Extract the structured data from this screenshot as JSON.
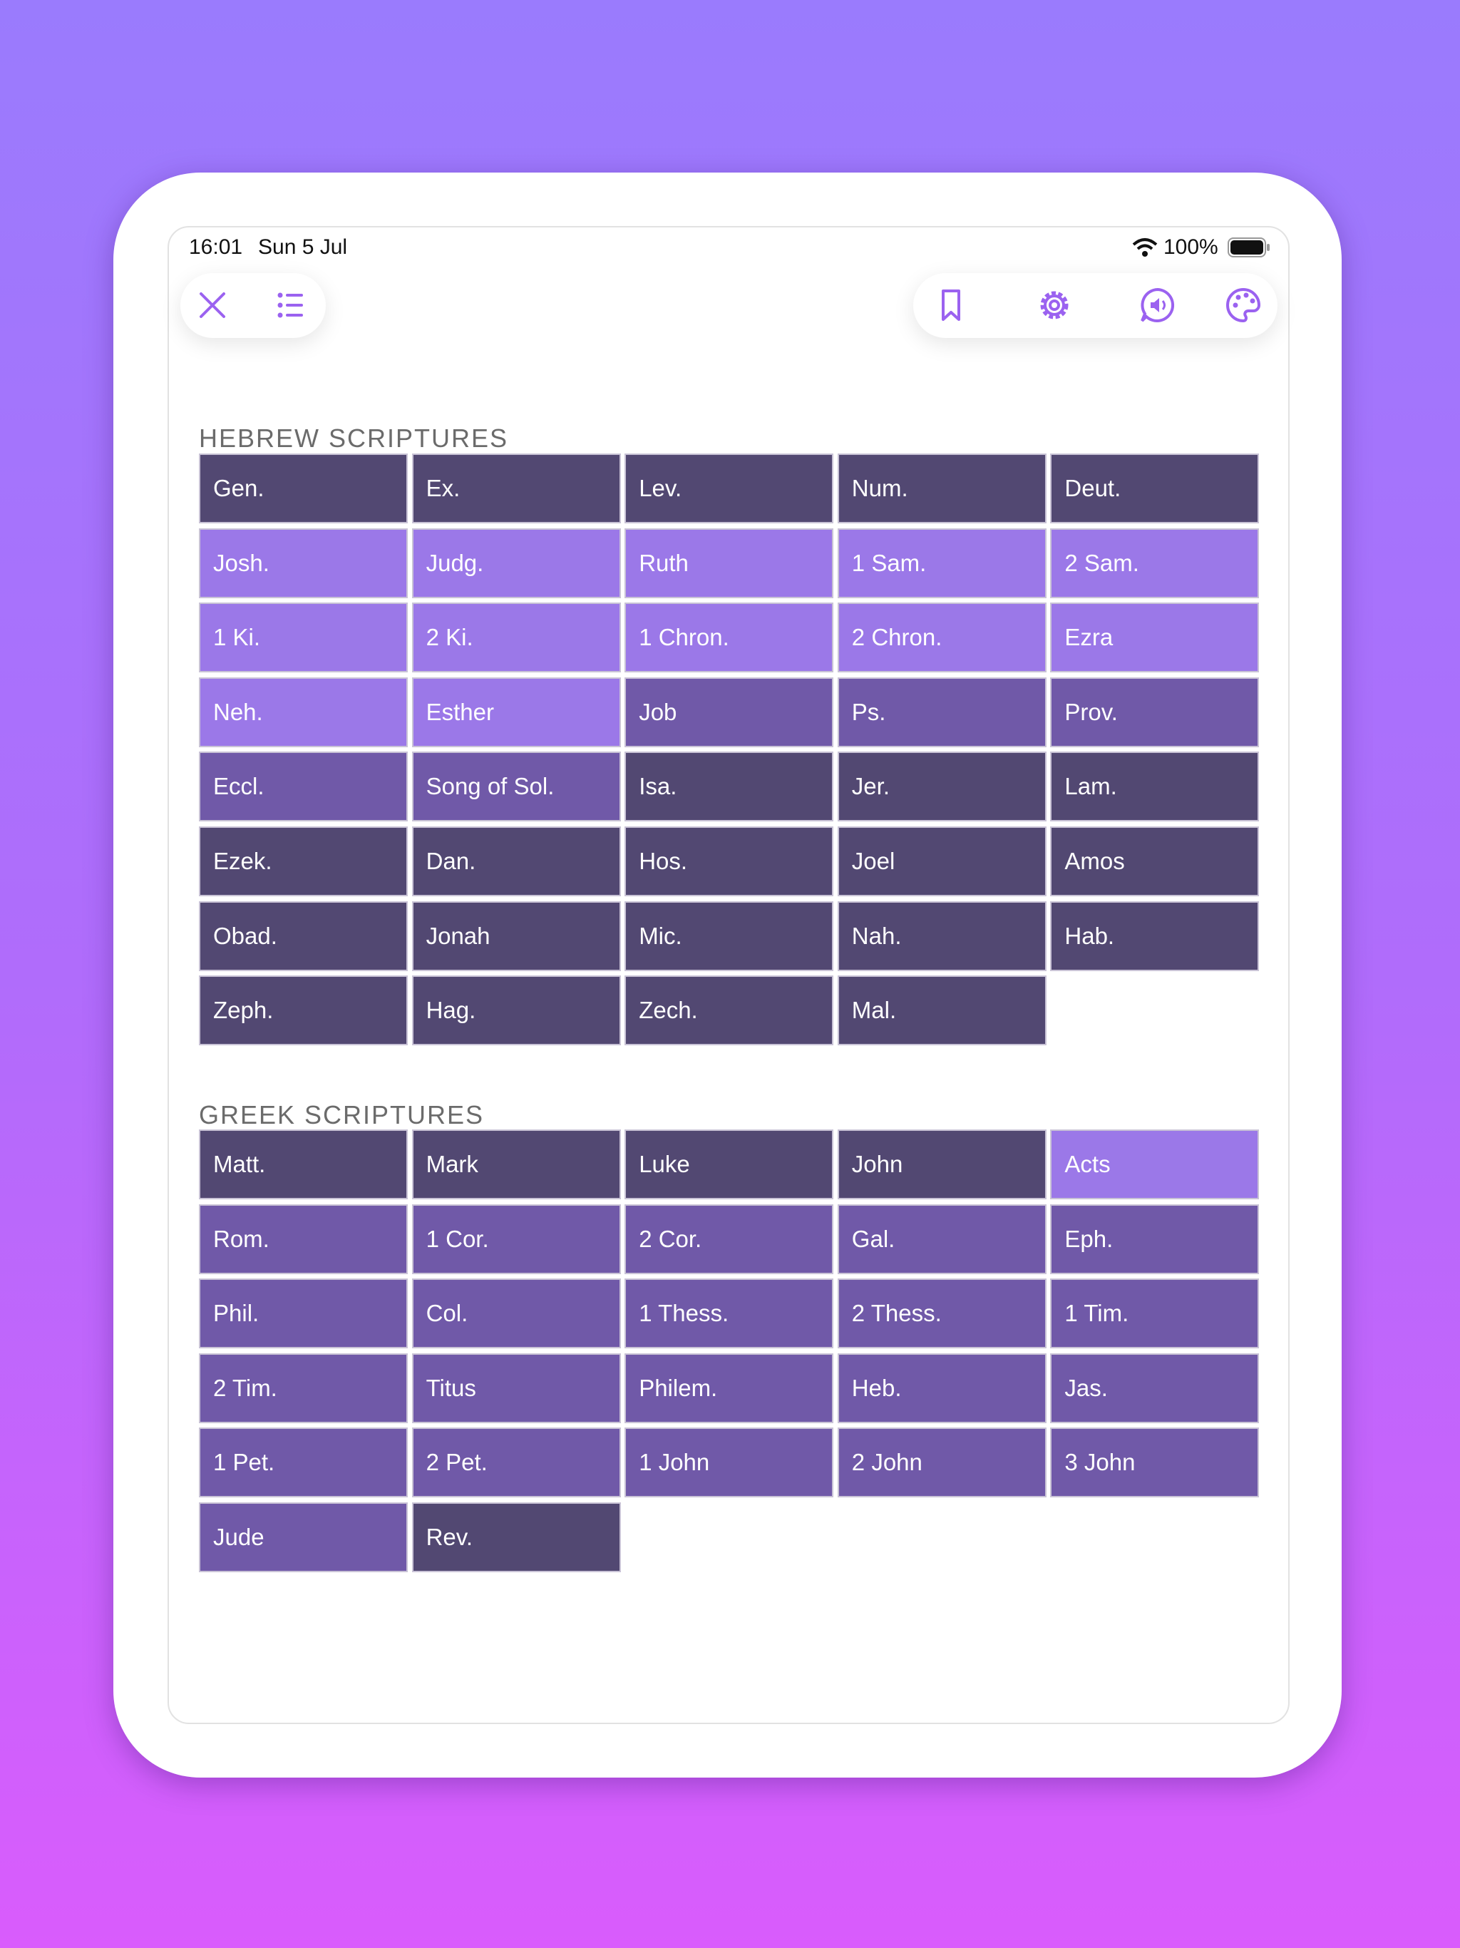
{
  "status_bar": {
    "time": "16:01",
    "date": "Sun 5 Jul",
    "battery": "100%"
  },
  "sections": [
    {
      "title": "HEBREW SCRIPTURES",
      "books": [
        {
          "label": "Gen.",
          "color": "#524872"
        },
        {
          "label": "Ex.",
          "color": "#524872"
        },
        {
          "label": "Lev.",
          "color": "#524872"
        },
        {
          "label": "Num.",
          "color": "#524872"
        },
        {
          "label": "Deut.",
          "color": "#524872"
        },
        {
          "label": "Josh.",
          "color": "#9b78e8"
        },
        {
          "label": "Judg.",
          "color": "#9b78e8"
        },
        {
          "label": "Ruth",
          "color": "#9b78e8"
        },
        {
          "label": "1 Sam.",
          "color": "#9b78e8"
        },
        {
          "label": "2 Sam.",
          "color": "#9b78e8"
        },
        {
          "label": "1 Ki.",
          "color": "#9b78e8"
        },
        {
          "label": "2 Ki.",
          "color": "#9b78e8"
        },
        {
          "label": "1 Chron.",
          "color": "#9b78e8"
        },
        {
          "label": "2 Chron.",
          "color": "#9b78e8"
        },
        {
          "label": "Ezra",
          "color": "#9b78e8"
        },
        {
          "label": "Neh.",
          "color": "#9b78e8"
        },
        {
          "label": "Esther",
          "color": "#9b78e8"
        },
        {
          "label": "Job",
          "color": "#7059a8"
        },
        {
          "label": "Ps.",
          "color": "#7059a8"
        },
        {
          "label": "Prov.",
          "color": "#7059a8"
        },
        {
          "label": "Eccl.",
          "color": "#7059a8"
        },
        {
          "label": "Song of Sol.",
          "color": "#7059a8"
        },
        {
          "label": "Isa.",
          "color": "#524872"
        },
        {
          "label": "Jer.",
          "color": "#524872"
        },
        {
          "label": "Lam.",
          "color": "#524872"
        },
        {
          "label": "Ezek.",
          "color": "#524872"
        },
        {
          "label": "Dan.",
          "color": "#524872"
        },
        {
          "label": "Hos.",
          "color": "#524872"
        },
        {
          "label": "Joel",
          "color": "#524872"
        },
        {
          "label": "Amos",
          "color": "#524872"
        },
        {
          "label": "Obad.",
          "color": "#524872"
        },
        {
          "label": "Jonah",
          "color": "#524872"
        },
        {
          "label": "Mic.",
          "color": "#524872"
        },
        {
          "label": "Nah.",
          "color": "#524872"
        },
        {
          "label": "Hab.",
          "color": "#524872"
        },
        {
          "label": "Zeph.",
          "color": "#524872"
        },
        {
          "label": "Hag.",
          "color": "#524872"
        },
        {
          "label": "Zech.",
          "color": "#524872"
        },
        {
          "label": "Mal.",
          "color": "#524872"
        }
      ]
    },
    {
      "title": "GREEK SCRIPTURES",
      "books": [
        {
          "label": "Matt.",
          "color": "#524872"
        },
        {
          "label": "Mark",
          "color": "#524872"
        },
        {
          "label": "Luke",
          "color": "#524872"
        },
        {
          "label": "John",
          "color": "#524872"
        },
        {
          "label": "Acts",
          "color": "#9b78e8"
        },
        {
          "label": "Rom.",
          "color": "#7059a8"
        },
        {
          "label": "1 Cor.",
          "color": "#7059a8"
        },
        {
          "label": "2 Cor.",
          "color": "#7059a8"
        },
        {
          "label": "Gal.",
          "color": "#7059a8"
        },
        {
          "label": "Eph.",
          "color": "#7059a8"
        },
        {
          "label": "Phil.",
          "color": "#7059a8"
        },
        {
          "label": "Col.",
          "color": "#7059a8"
        },
        {
          "label": "1 Thess.",
          "color": "#7059a8"
        },
        {
          "label": "2 Thess.",
          "color": "#7059a8"
        },
        {
          "label": "1 Tim.",
          "color": "#7059a8"
        },
        {
          "label": "2 Tim.",
          "color": "#7059a8"
        },
        {
          "label": "Titus",
          "color": "#7059a8"
        },
        {
          "label": "Philem.",
          "color": "#7059a8"
        },
        {
          "label": "Heb.",
          "color": "#7059a8"
        },
        {
          "label": "Jas.",
          "color": "#7059a8"
        },
        {
          "label": "1 Pet.",
          "color": "#7059a8"
        },
        {
          "label": "2 Pet.",
          "color": "#7059a8"
        },
        {
          "label": "1 John",
          "color": "#7059a8"
        },
        {
          "label": "2 John",
          "color": "#7059a8"
        },
        {
          "label": "3 John",
          "color": "#7059a8"
        },
        {
          "label": "Jude",
          "color": "#7059a8"
        },
        {
          "label": "Rev.",
          "color": "#524872"
        }
      ]
    }
  ]
}
